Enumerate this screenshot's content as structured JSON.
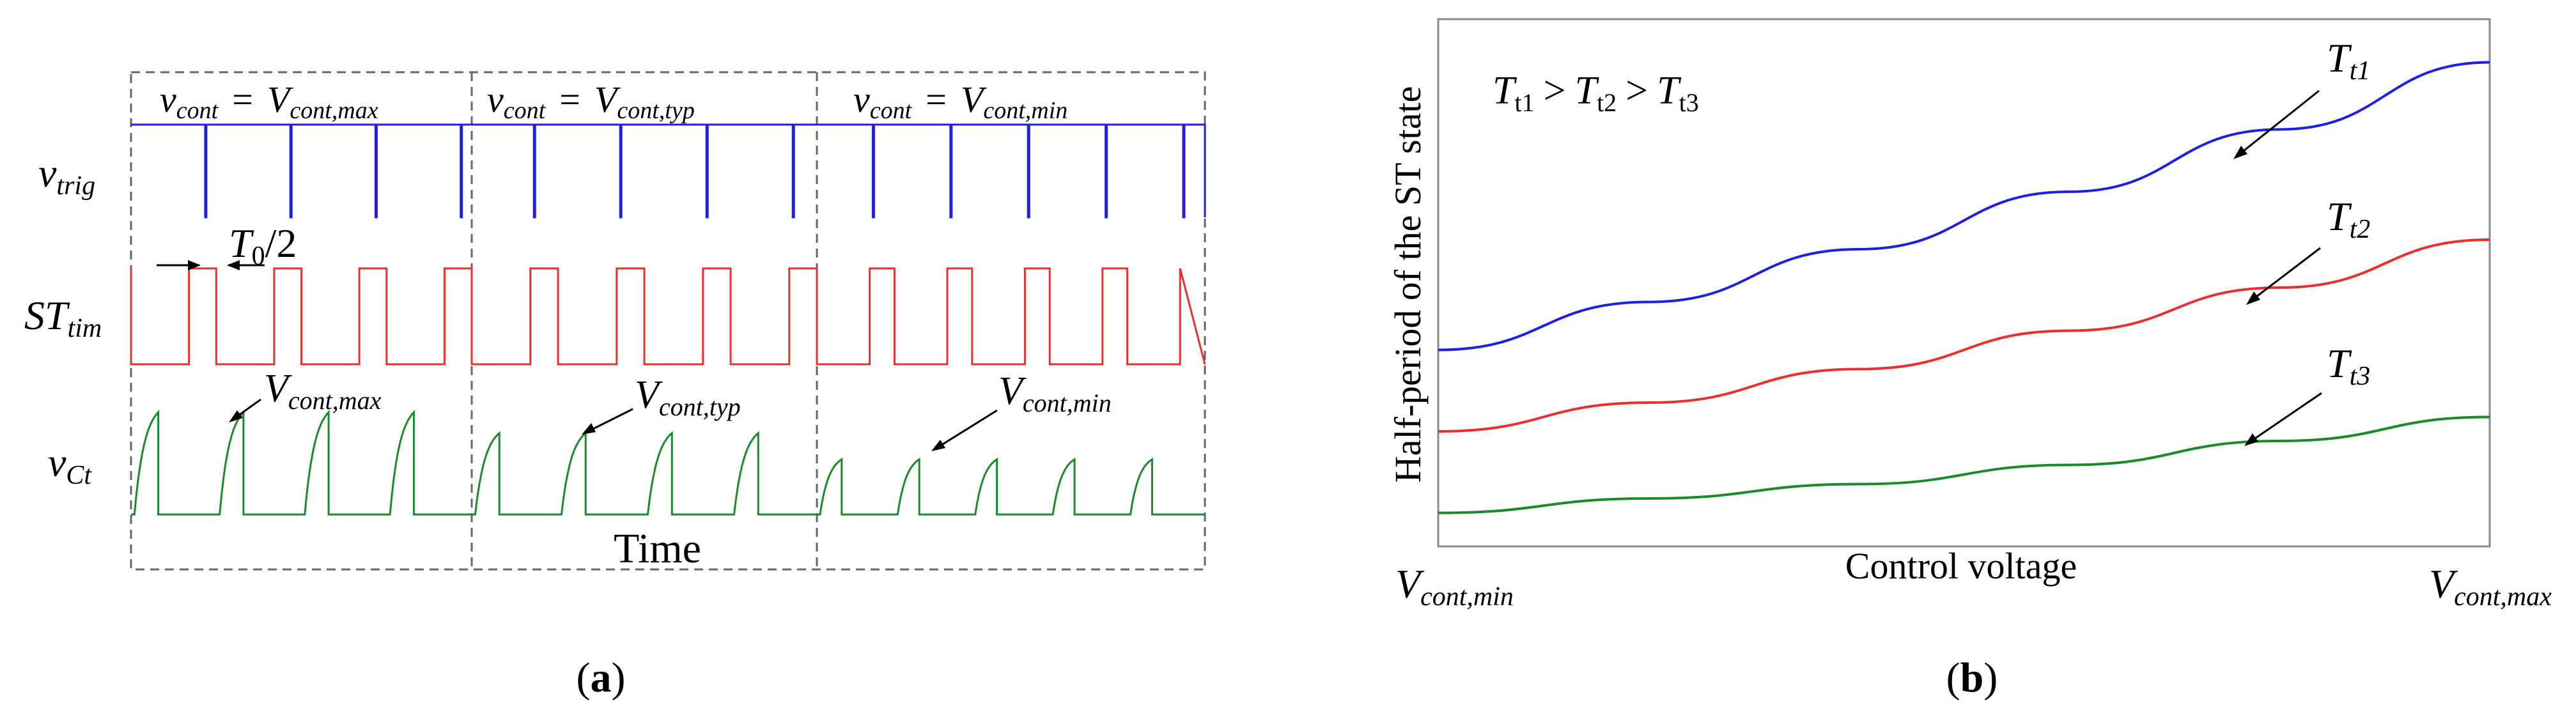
{
  "panel_a": {
    "caption": "a",
    "time_label": "Time",
    "segments": [
      {
        "label_base": "v",
        "label_sub": "cont",
        "equals": "=",
        "value_base": "V",
        "value_sub": "cont,max"
      },
      {
        "label_base": "v",
        "label_sub": "cont",
        "equals": "=",
        "value_base": "V",
        "value_sub": "cont,typ"
      },
      {
        "label_base": "v",
        "label_sub": "cont",
        "equals": "=",
        "value_base": "V",
        "value_sub": "cont,min"
      }
    ],
    "rows": [
      {
        "base": "v",
        "sub": "trig",
        "color": "#1f1fe0"
      },
      {
        "base": "ST",
        "sub": "tim",
        "color": "#e8312f"
      },
      {
        "base": "v",
        "sub": "Ct",
        "color": "#1a8a2a"
      }
    ],
    "half_period": {
      "base": "T",
      "sub": "0",
      "suffix": "/2"
    },
    "peak_labels": [
      {
        "base": "V",
        "sub": "cont,max"
      },
      {
        "base": "V",
        "sub": "cont,typ"
      },
      {
        "base": "V",
        "sub": "cont,min"
      }
    ],
    "pulses_per_segment": [
      4,
      4,
      5
    ]
  },
  "panel_b": {
    "caption": "b",
    "legend": {
      "t1": {
        "base": "T",
        "sub": "t1"
      },
      "gt1": ">",
      "t2": {
        "base": "T",
        "sub": "t2"
      },
      "gt2": ">",
      "t3": {
        "base": "T",
        "sub": "t3"
      }
    },
    "chart_data": {
      "type": "line",
      "title": "",
      "xlabel": "Control voltage",
      "ylabel": "Half-period of the ST state",
      "x_tick_labels": [
        {
          "base": "V",
          "sub": "cont,min"
        },
        {
          "base": "V",
          "sub": "cont,max"
        }
      ],
      "xlim": [
        0,
        1
      ],
      "ylim": [
        0,
        1
      ],
      "x": [
        0,
        0.2,
        0.4,
        0.6,
        0.8,
        1.0
      ],
      "series": [
        {
          "name": "Tt1",
          "label_base": "T",
          "label_sub": "t1",
          "color": "#1f1fe0",
          "values": [
            0.39,
            0.49,
            0.6,
            0.72,
            0.85,
            0.99
          ]
        },
        {
          "name": "Tt2",
          "label_base": "T",
          "label_sub": "t2",
          "color": "#e8312f",
          "values": [
            0.22,
            0.28,
            0.35,
            0.43,
            0.52,
            0.62
          ]
        },
        {
          "name": "Tt3",
          "label_base": "T",
          "label_sub": "t3",
          "color": "#1a8a2a",
          "values": [
            0.05,
            0.08,
            0.11,
            0.15,
            0.2,
            0.25
          ]
        }
      ]
    }
  }
}
